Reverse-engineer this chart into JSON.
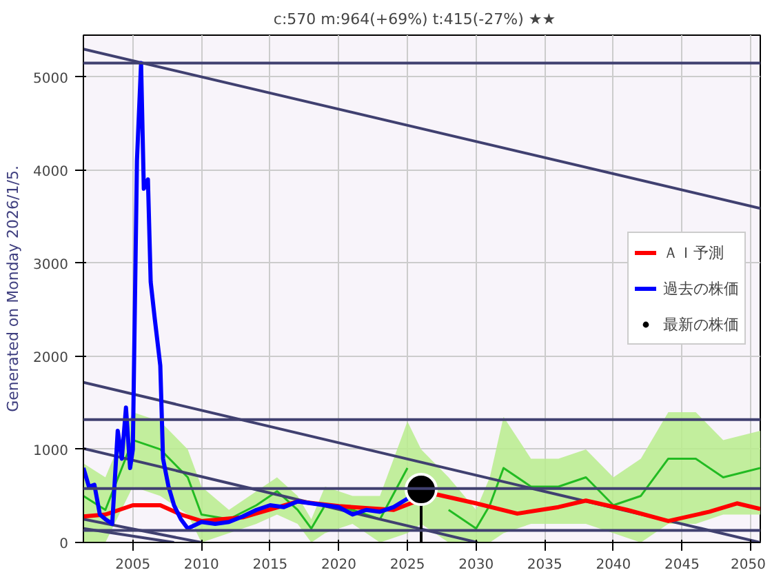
{
  "chart_data": {
    "type": "line",
    "title": "c:570  m:964(+69%)  t:415(-27%)  ★★",
    "ylabel": "Generated on Monday 2026/1/5.",
    "xlim": [
      2001.4,
      2050.7
    ],
    "ylim": [
      0,
      5450
    ],
    "xticks": [
      2005,
      2010,
      2015,
      2020,
      2025,
      2030,
      2035,
      2040,
      2045,
      2050
    ],
    "yticks": [
      0,
      1000,
      2000,
      3000,
      4000,
      5000
    ],
    "grid": true,
    "legend": "right",
    "series": [
      {
        "color": "#22bb22",
        "x": [
          2001.4,
          2003,
          2005,
          2007,
          2009,
          2010,
          2012,
          2014,
          2015.5,
          2017,
          2018,
          2019,
          2021,
          2023,
          2025,
          2026,
          2028,
          2030,
          2031,
          2032,
          2034,
          2036,
          2038,
          2040,
          2042,
          2044,
          2046,
          2048,
          2050.7
        ],
        "values": [
          500,
          350,
          1100,
          1000,
          700,
          300,
          250,
          400,
          550,
          350,
          150,
          400,
          350,
          250,
          800,
          null,
          350,
          150,
          400,
          800,
          600,
          600,
          700,
          400,
          500,
          900,
          900,
          700,
          800
        ],
        "upper": [
          850,
          700,
          1400,
          1300,
          1000,
          600,
          350,
          550,
          700,
          500,
          250,
          600,
          500,
          500,
          1300,
          1000,
          700,
          350,
          700,
          1350,
          900,
          900,
          1000,
          700,
          900,
          1400,
          1400,
          1100,
          1200
        ],
        "lower": [
          0,
          0,
          600,
          500,
          300,
          0,
          100,
          200,
          300,
          200,
          0,
          100,
          200,
          0,
          100,
          200,
          0,
          0,
          0,
          100,
          200,
          200,
          200,
          100,
          0,
          200,
          200,
          300,
          300
        ]
      },
      {
        "color": "#404070",
        "x": [
          2001.4,
          2050.7
        ],
        "values": [
          5300,
          3590
        ]
      },
      {
        "color": "#404070",
        "x": [
          2001.4,
          2050.7
        ],
        "values": [
          1720,
          0
        ]
      },
      {
        "color": "#404070",
        "x": [
          2001.4,
          2030.1
        ],
        "values": [
          1010,
          0
        ]
      },
      {
        "color": "#404070",
        "x": [
          2001.4,
          2010
        ],
        "values": [
          250,
          0
        ]
      },
      {
        "color": "#404070",
        "x": [
          2001.4,
          2008
        ],
        "values": [
          150,
          0
        ]
      },
      {
        "name": "ＡＩ予測",
        "color": "#ff0000",
        "x": [
          2001.4,
          2003,
          2005,
          2007,
          2008.5,
          2010,
          2013,
          2017,
          2020,
          2024,
          2027,
          2030,
          2033,
          2036,
          2038,
          2041,
          2044,
          2047,
          2049,
          2050.7
        ],
        "values": [
          280,
          300,
          400,
          400,
          300,
          230,
          270,
          440,
          390,
          350,
          520,
          420,
          310,
          380,
          450,
          350,
          230,
          330,
          420,
          360
        ]
      },
      {
        "name": "過去の株価",
        "color": "#0000ff",
        "x": [
          2001.4,
          2001.8,
          2002.2,
          2002.6,
          2003,
          2003.5,
          2003.9,
          2004.2,
          2004.5,
          2004.8,
          2005.0,
          2005.3,
          2005.6,
          2005.8,
          2006.1,
          2006.3,
          2006.6,
          2007.0,
          2007.2,
          2007.6,
          2008,
          2008.5,
          2009,
          2010,
          2011,
          2012,
          2013,
          2014,
          2015,
          2016,
          2017,
          2018,
          2019,
          2020,
          2021,
          2022,
          2023,
          2024,
          2025
        ],
        "values": [
          800,
          600,
          620,
          300,
          250,
          200,
          1200,
          900,
          1450,
          800,
          1000,
          4100,
          5150,
          3800,
          3900,
          2800,
          2400,
          1900,
          900,
          600,
          400,
          250,
          150,
          220,
          200,
          220,
          280,
          350,
          400,
          380,
          440,
          420,
          400,
          380,
          300,
          350,
          330,
          380,
          470
        ]
      },
      {
        "color": "#000000",
        "x": [
          2026,
          2026
        ],
        "values": [
          0,
          570
        ]
      },
      {
        "type": "scatter",
        "name": "最新の株価",
        "color": "#000000",
        "marker": "circle",
        "x": [
          2026
        ],
        "values": [
          570
        ]
      }
    ],
    "ref_lines": [
      {
        "axis": "y",
        "value": 5150,
        "color": "#404070"
      },
      {
        "axis": "y",
        "value": 1320,
        "color": "#404070"
      },
      {
        "axis": "y",
        "value": 580,
        "color": "#404070"
      },
      {
        "axis": "y",
        "value": 130,
        "color": "#404070"
      }
    ]
  }
}
